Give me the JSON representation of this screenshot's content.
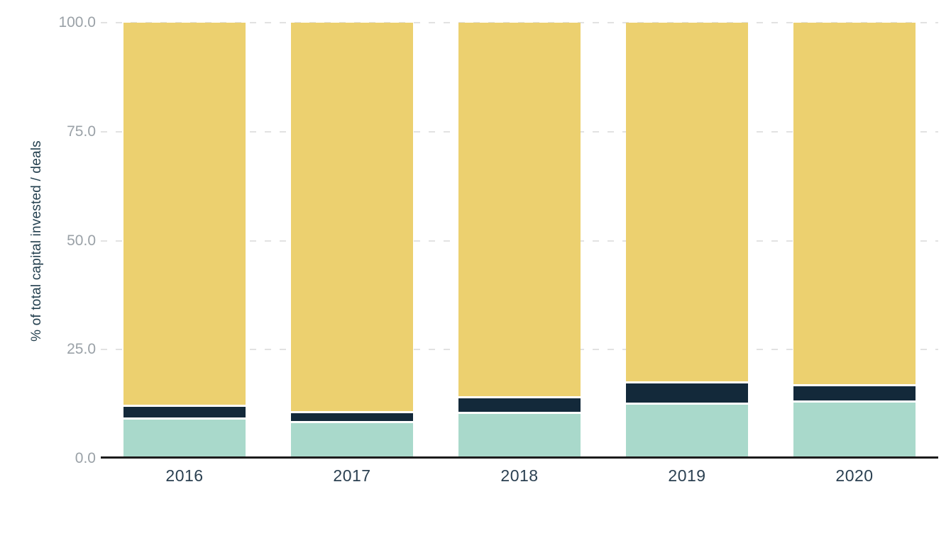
{
  "chart_data": {
    "type": "bar",
    "stacked": true,
    "title": "",
    "categories": [
      "2016",
      "2017",
      "2018",
      "2019",
      "2020"
    ],
    "series": [
      {
        "name": "teal-bottom-segment",
        "color": "#a9d9cb",
        "values": [
          9.0,
          8.2,
          10.2,
          12.4,
          12.9
        ]
      },
      {
        "name": "dark-navy-middle-segment",
        "color": "#13293a",
        "values": [
          2.9,
          2.2,
          3.7,
          4.8,
          3.7
        ]
      },
      {
        "name": "yellow-top-segment",
        "color": "#ecd06f",
        "values": [
          88.1,
          89.6,
          86.1,
          82.8,
          83.4
        ]
      }
    ],
    "xlabel": "",
    "ylabel": "% of total capital invested / deals",
    "ylim": [
      0,
      100
    ],
    "yticks": [
      {
        "label": "0.0",
        "value": 0
      },
      {
        "label": "25.0",
        "value": 25
      },
      {
        "label": "50.0",
        "value": 50
      },
      {
        "label": "75.0",
        "value": 75
      },
      {
        "label": "100.0",
        "value": 100
      }
    ],
    "grid": {
      "horizontal": true,
      "style": "dashed",
      "color": "#e2e2e2",
      "levels": [
        25,
        50,
        75,
        100
      ]
    },
    "legend": {
      "visible": false
    }
  },
  "colors": {
    "background": "#ffffff",
    "axis_line": "#1c1c1c",
    "tick_label": "#9aa1a7",
    "axis_title": "#24404f",
    "x_label": "#2b4051"
  }
}
